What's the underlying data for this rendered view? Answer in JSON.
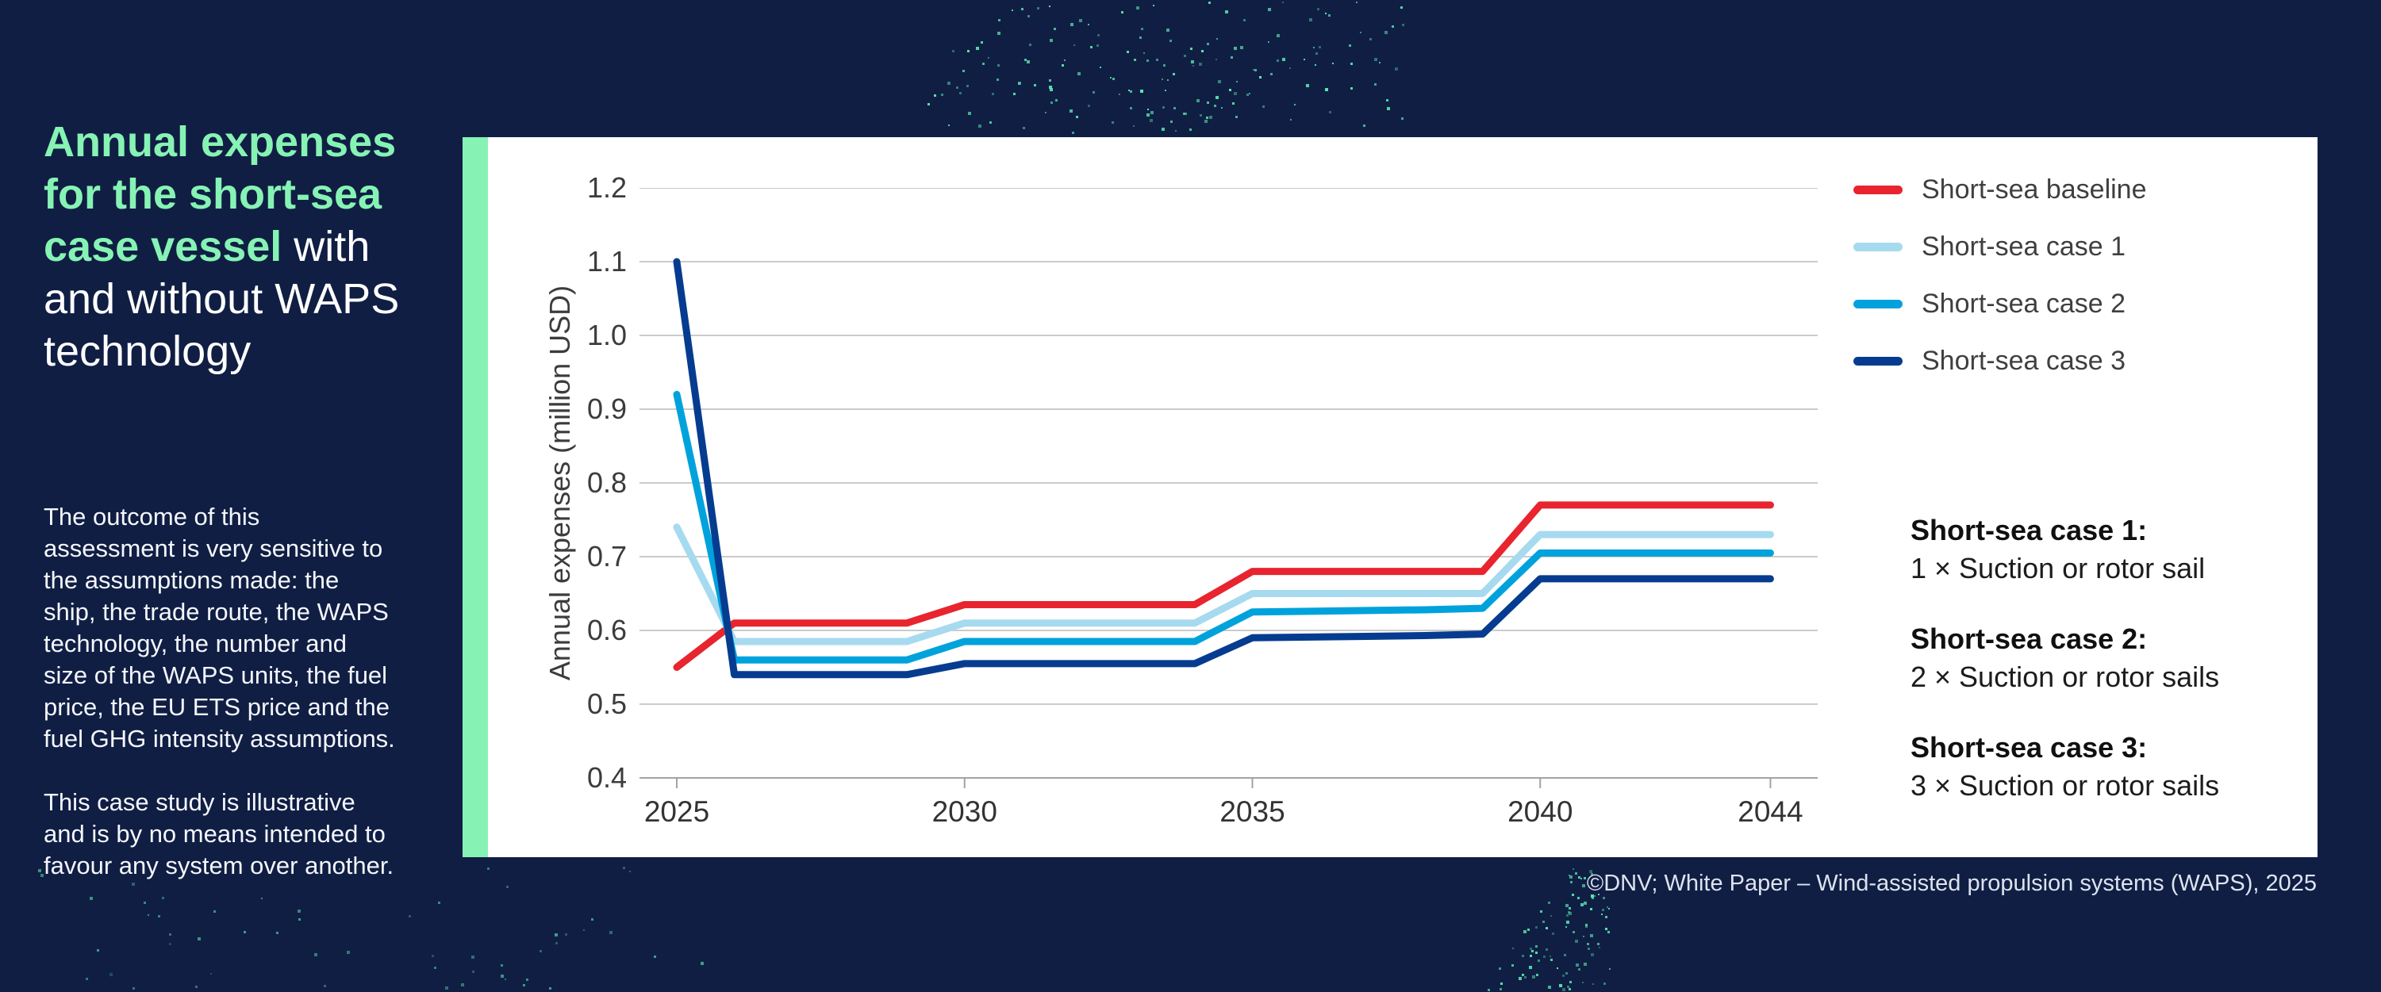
{
  "page": {
    "background_color": "#101E44",
    "accent_color": "#86F3B4",
    "dot_color": "#5BE8AD",
    "panel_color": "#FFFFFF"
  },
  "sidebar": {
    "title_highlight": "Annual expenses for the short-sea case vessel",
    "title_rest": "with and without WAPS technology",
    "title_lines": [
      {
        "green": "Annual expenses",
        "white": ""
      },
      {
        "green": "for the short-sea",
        "white": ""
      },
      {
        "green": "case vessel",
        "white": " with"
      },
      {
        "green": "",
        "white": "and without WAPS"
      },
      {
        "green": "",
        "white": "technology"
      }
    ],
    "paragraph1": "The outcome of this assessment is very sensitive to the assumptions made: the ship, the trade route, the WAPS technology, the number and size of the WAPS units, the fuel price, the EU ETS price and the fuel GHG intensity assumptions.",
    "paragraph2": "This case study is illustrative and is by no means intended to favour any system over another."
  },
  "chart_data": {
    "type": "line",
    "title": "",
    "xlabel": "",
    "ylabel": "Annual expenses (million USD)",
    "x": [
      2025,
      2026,
      2027,
      2028,
      2029,
      2030,
      2031,
      2032,
      2033,
      2034,
      2035,
      2036,
      2037,
      2038,
      2039,
      2040,
      2041,
      2042,
      2043,
      2044
    ],
    "x_ticks": [
      2025,
      2030,
      2035,
      2040,
      2044
    ],
    "y_ticks": [
      0.4,
      0.5,
      0.6,
      0.7,
      0.8,
      0.9,
      1.0,
      1.1,
      1.2
    ],
    "ylim": [
      0.4,
      1.2
    ],
    "xlim": [
      2025,
      2044
    ],
    "grid": true,
    "legend_position": "top-right",
    "series": [
      {
        "name": "Short-sea baseline",
        "color": "#E8242F",
        "values": [
          0.55,
          0.61,
          0.61,
          0.61,
          0.61,
          0.635,
          0.635,
          0.635,
          0.635,
          0.635,
          0.68,
          0.68,
          0.68,
          0.68,
          0.68,
          0.77,
          0.77,
          0.77,
          0.77,
          0.77
        ]
      },
      {
        "name": "Short-sea case 1",
        "color": "#A6DAEF",
        "values": [
          0.74,
          0.585,
          0.585,
          0.585,
          0.585,
          0.61,
          0.61,
          0.61,
          0.61,
          0.61,
          0.65,
          0.65,
          0.65,
          0.65,
          0.65,
          0.73,
          0.73,
          0.73,
          0.73,
          0.73
        ]
      },
      {
        "name": "Short-sea case 2",
        "color": "#00A2DC",
        "values": [
          0.92,
          0.56,
          0.56,
          0.56,
          0.56,
          0.585,
          0.585,
          0.585,
          0.585,
          0.585,
          0.625,
          0.626,
          0.627,
          0.628,
          0.63,
          0.705,
          0.705,
          0.705,
          0.705,
          0.705
        ]
      },
      {
        "name": "Short-sea case 3",
        "color": "#063C90",
        "values": [
          1.1,
          0.54,
          0.54,
          0.54,
          0.54,
          0.555,
          0.555,
          0.555,
          0.555,
          0.555,
          0.59,
          0.591,
          0.592,
          0.593,
          0.595,
          0.67,
          0.67,
          0.67,
          0.67,
          0.67
        ]
      }
    ]
  },
  "case_notes": [
    {
      "label": "Short-sea case 1:",
      "desc": "1 × Suction or rotor sail"
    },
    {
      "label": "Short-sea case 2:",
      "desc": "2 × Suction or rotor sails"
    },
    {
      "label": "Short-sea case 3:",
      "desc": "3 × Suction or rotor sails"
    }
  ],
  "footer": {
    "credit": "©DNV; White Paper – Wind-assisted propulsion systems (WAPS), 2025"
  }
}
